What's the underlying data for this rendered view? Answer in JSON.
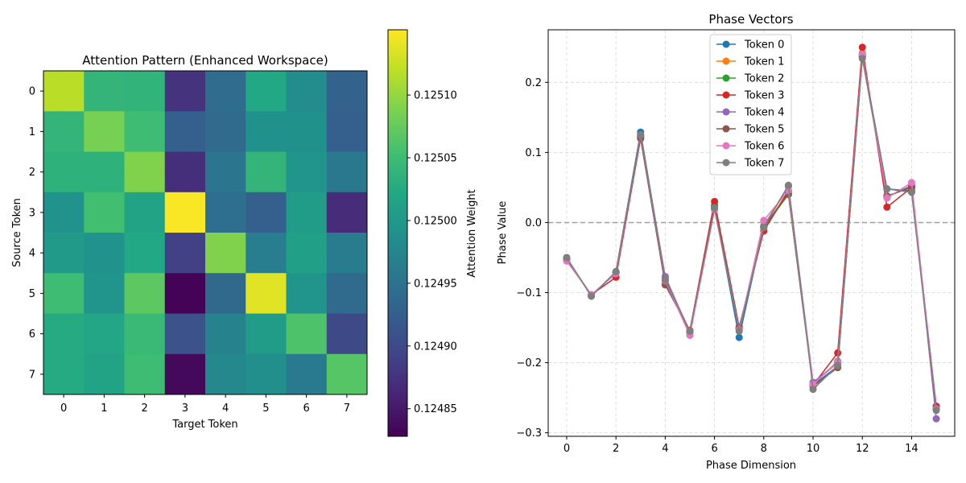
{
  "chart_data": [
    {
      "type": "heatmap",
      "title": "Attention Pattern (Enhanced Workspace)",
      "xlabel": "Target Token",
      "ylabel": "Source Token",
      "x_categories": [
        "0",
        "1",
        "2",
        "3",
        "4",
        "5",
        "6",
        "7"
      ],
      "y_categories": [
        "0",
        "1",
        "2",
        "3",
        "4",
        "5",
        "6",
        "7"
      ],
      "values": [
        [
          0.125118,
          0.12504,
          0.125038,
          0.124876,
          0.124942,
          0.125022,
          0.124985,
          0.12493
        ],
        [
          0.12504,
          0.125085,
          0.12505,
          0.124925,
          0.12494,
          0.12499,
          0.12499,
          0.124925
        ],
        [
          0.125035,
          0.125035,
          0.12509,
          0.124872,
          0.124955,
          0.12504,
          0.124995,
          0.124958
        ],
        [
          0.124992,
          0.125053,
          0.125015,
          0.12515,
          0.124945,
          0.124925,
          0.125005,
          0.124868
        ],
        [
          0.125003,
          0.124992,
          0.125022,
          0.12489,
          0.12509,
          0.124965,
          0.12501,
          0.124962
        ],
        [
          0.12505,
          0.124995,
          0.12507,
          0.12483,
          0.124938,
          0.125138,
          0.124995,
          0.12494
        ],
        [
          0.125025,
          0.12502,
          0.125045,
          0.12491,
          0.124972,
          0.125005,
          0.12506,
          0.1249
        ],
        [
          0.125025,
          0.125015,
          0.12505,
          0.124835,
          0.124978,
          0.124987,
          0.12496,
          0.125065
        ]
      ],
      "colorbar": {
        "label": "Attention Weight",
        "range": [
          0.124828,
          0.125152
        ],
        "ticks": [
          0.12485,
          0.1249,
          0.12495,
          0.125,
          0.12505,
          0.1251
        ],
        "tick_labels": [
          "0.12485",
          "0.12490",
          "0.12495",
          "0.12500",
          "0.12505",
          "0.12510"
        ]
      },
      "colormap": "viridis"
    },
    {
      "type": "line",
      "title": "Phase Vectors",
      "xlabel": "Phase Dimension",
      "ylabel": "Phase Value",
      "x": [
        0,
        1,
        2,
        3,
        4,
        5,
        6,
        7,
        8,
        9,
        10,
        11,
        12,
        13,
        14,
        15
      ],
      "xlim": [
        -0.75,
        15.75
      ],
      "ylim": [
        -0.305,
        0.275
      ],
      "xticks": [
        0,
        2,
        4,
        6,
        8,
        10,
        12,
        14
      ],
      "xtick_labels": [
        "0",
        "2",
        "4",
        "6",
        "8",
        "10",
        "12",
        "14"
      ],
      "yticks": [
        -0.3,
        -0.2,
        -0.1,
        0.0,
        0.1,
        0.2
      ],
      "ytick_labels": [
        "−0.3",
        "−0.2",
        "−0.1",
        "0.0",
        "0.1",
        "0.2"
      ],
      "grid": true,
      "reference_line": {
        "y": 0.0,
        "style": "dashed",
        "color": "#a0a0a0"
      },
      "legend_position": "top-center",
      "series": [
        {
          "name": "Token 0",
          "color": "#1f77b4",
          "values": [
            -0.05,
            -0.105,
            -0.07,
            0.129,
            -0.08,
            -0.155,
            0.022,
            -0.164,
            -0.005,
            0.052,
            -0.232,
            -0.205,
            0.238,
            0.048,
            0.045,
            -0.265
          ]
        },
        {
          "name": "Token 1",
          "color": "#ff7f0e",
          "values": [
            -0.052,
            -0.104,
            -0.072,
            0.123,
            -0.083,
            -0.157,
            0.025,
            -0.152,
            -0.008,
            0.045,
            -0.23,
            -0.2,
            0.242,
            0.037,
            0.052,
            -0.265
          ]
        },
        {
          "name": "Token 2",
          "color": "#2ca02c",
          "values": [
            -0.051,
            -0.104,
            -0.071,
            0.122,
            -0.082,
            -0.156,
            0.024,
            -0.151,
            -0.007,
            0.04,
            -0.231,
            -0.198,
            0.24,
            0.038,
            0.05,
            -0.265
          ]
        },
        {
          "name": "Token 3",
          "color": "#d62728",
          "values": [
            -0.053,
            -0.103,
            -0.078,
            0.12,
            -0.088,
            -0.154,
            0.03,
            -0.149,
            -0.012,
            0.045,
            -0.232,
            -0.186,
            0.25,
            0.022,
            0.05,
            -0.262
          ]
        },
        {
          "name": "Token 4",
          "color": "#9467bd",
          "values": [
            -0.052,
            -0.104,
            -0.071,
            0.124,
            -0.077,
            -0.157,
            0.02,
            -0.152,
            -0.006,
            0.053,
            -0.228,
            -0.2,
            0.236,
            0.036,
            0.053,
            -0.28
          ]
        },
        {
          "name": "Token 5",
          "color": "#8c564b",
          "values": [
            -0.051,
            -0.105,
            -0.071,
            0.122,
            -0.089,
            -0.155,
            0.021,
            -0.151,
            -0.006,
            0.041,
            -0.234,
            -0.207,
            0.237,
            0.037,
            0.051,
            -0.266
          ]
        },
        {
          "name": "Token 6",
          "color": "#e377c2",
          "values": [
            -0.055,
            -0.103,
            -0.073,
            0.125,
            -0.083,
            -0.161,
            0.018,
            -0.153,
            0.003,
            0.046,
            -0.231,
            -0.199,
            0.24,
            0.035,
            0.057,
            -0.266
          ]
        },
        {
          "name": "Token 7",
          "color": "#7f7f7f",
          "values": [
            -0.05,
            -0.105,
            -0.07,
            0.125,
            -0.082,
            -0.155,
            0.021,
            -0.155,
            -0.007,
            0.053,
            -0.238,
            -0.204,
            0.234,
            0.048,
            0.043,
            -0.268
          ]
        }
      ]
    }
  ]
}
